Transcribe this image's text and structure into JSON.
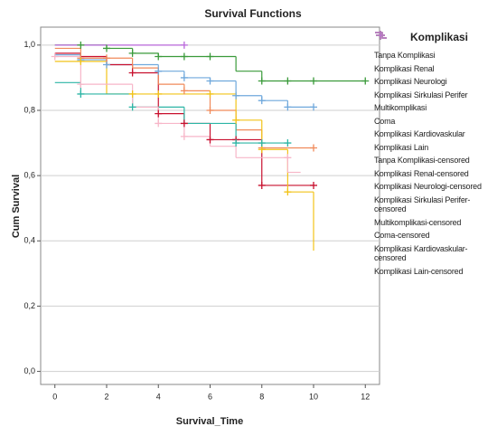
{
  "chart_data": {
    "type": "survival",
    "title": "Survival Functions",
    "x_label": "Survival_Time",
    "y_label": "Cum Survival",
    "legend_title": "Komplikasi",
    "legend": "right",
    "grid": true,
    "xlim": [
      -0.55,
      12.55
    ],
    "xticks": [
      0,
      2,
      4,
      6,
      8,
      10,
      12
    ],
    "ylim": [
      -0.04,
      1.055
    ],
    "yticks": [
      {
        "value": 0,
        "label": "0,0"
      },
      {
        "value": 0.2,
        "label": "0,2"
      },
      {
        "value": 0.4,
        "label": "0,4"
      },
      {
        "value": 0.6,
        "label": "0,6"
      },
      {
        "value": 0.8,
        "label": "0,8"
      },
      {
        "value": 1,
        "label": "1,0"
      }
    ],
    "series": [
      {
        "name": "Tanpa Komplikasi",
        "color": "#6fa8dc",
        "marker": "step",
        "x": [
          0,
          1,
          2,
          4,
          5,
          6,
          7,
          8,
          9,
          10
        ],
        "values": [
          0.97,
          0.955,
          0.94,
          0.92,
          0.9,
          0.89,
          0.845,
          0.83,
          0.81,
          0.81
        ]
      },
      {
        "name": "Komplikasi Renal",
        "color": "#c8102e",
        "marker": "step",
        "x": [
          0,
          1,
          2,
          3,
          4,
          5,
          6,
          8,
          10
        ],
        "values": [
          0.975,
          0.965,
          0.94,
          0.915,
          0.79,
          0.76,
          0.71,
          0.57,
          0.57
        ]
      },
      {
        "name": "Komplikasi Neurologi",
        "color": "#3a9a3a",
        "marker": "step",
        "x": [
          0,
          2,
          3,
          4,
          7,
          8,
          12
        ],
        "values": [
          1.0,
          0.99,
          0.975,
          0.965,
          0.92,
          0.89,
          0.89
        ]
      },
      {
        "name": "Komplikasi Sirkulasi Perifer",
        "color": "#f08a5a",
        "marker": "step",
        "x": [
          0,
          1,
          3,
          4,
          5,
          6,
          7,
          8,
          10
        ],
        "values": [
          0.99,
          0.96,
          0.93,
          0.88,
          0.86,
          0.8,
          0.74,
          0.685,
          0.685
        ]
      },
      {
        "name": "Multikomplikasi",
        "color": "#f2c318",
        "marker": "step",
        "x": [
          0,
          2,
          7,
          8,
          9,
          10
        ],
        "values": [
          0.95,
          0.85,
          0.77,
          0.68,
          0.55,
          0.37
        ]
      },
      {
        "name": "Coma",
        "color": "#2cb5a5",
        "marker": "step",
        "x": [
          0,
          1,
          3,
          5,
          7,
          9
        ],
        "values": [
          0.885,
          0.85,
          0.81,
          0.76,
          0.7,
          0.7
        ]
      },
      {
        "name": "Komplikasi Kardiovaskular",
        "color": "#f7b6c8",
        "marker": "step",
        "x": [
          0,
          1,
          3,
          4,
          5,
          6,
          7,
          9,
          9.5
        ],
        "values": [
          0.965,
          0.88,
          0.81,
          0.76,
          0.72,
          0.69,
          0.655,
          0.61,
          0.61
        ]
      },
      {
        "name": "Komplikasi Lain",
        "color": "#b967db",
        "marker": "step",
        "x": [
          0,
          5
        ],
        "values": [
          1.0,
          1.0
        ]
      },
      {
        "name": "Tanpa Komplikasi-censored",
        "color": "#6fa8dc",
        "marker": "plus",
        "x": [
          1,
          2,
          4,
          5,
          6,
          7,
          8,
          9,
          10
        ],
        "values": [
          0.955,
          0.94,
          0.92,
          0.9,
          0.89,
          0.845,
          0.83,
          0.81,
          0.81
        ]
      },
      {
        "name": "Komplikasi Renal-censored",
        "color": "#c8102e",
        "marker": "plus",
        "x": [
          3,
          4,
          5,
          6,
          7,
          8,
          10
        ],
        "values": [
          0.915,
          0.79,
          0.76,
          0.71,
          0.71,
          0.57,
          0.57
        ]
      },
      {
        "name": "Komplikasi Neurologi-censored",
        "color": "#3a9a3a",
        "marker": "plus",
        "x": [
          1,
          2,
          3,
          4,
          5,
          6,
          8,
          9,
          10,
          12
        ],
        "values": [
          1.0,
          0.99,
          0.975,
          0.965,
          0.965,
          0.965,
          0.89,
          0.89,
          0.89,
          0.89
        ]
      },
      {
        "name": "Komplikasi Sirkulasi Perifer-censored",
        "color": "#f08a5a",
        "marker": "plus",
        "x": [
          1,
          2,
          5,
          6,
          8,
          10
        ],
        "values": [
          0.96,
          0.96,
          0.86,
          0.8,
          0.685,
          0.685
        ]
      },
      {
        "name": "Multikomplikasi-censored",
        "color": "#f2c318",
        "marker": "plus",
        "x": [
          1,
          3,
          4,
          6,
          7,
          8,
          9
        ],
        "values": [
          0.95,
          0.85,
          0.85,
          0.85,
          0.77,
          0.68,
          0.55
        ]
      },
      {
        "name": "Coma-censored",
        "color": "#2cb5a5",
        "marker": "plus",
        "x": [
          1,
          3,
          7,
          8,
          9
        ],
        "values": [
          0.85,
          0.81,
          0.7,
          0.7,
          0.7
        ]
      },
      {
        "name": "Komplikasi Kardiovaskular-censored",
        "color": "#f7b6c8",
        "marker": "plus",
        "x": [
          0,
          1,
          4,
          5,
          9
        ],
        "values": [
          0.965,
          0.88,
          0.76,
          0.72,
          0.655
        ]
      },
      {
        "name": "Komplikasi Lain-censored",
        "color": "#b967db",
        "marker": "plus",
        "x": [
          5
        ],
        "values": [
          1.0
        ]
      }
    ]
  }
}
